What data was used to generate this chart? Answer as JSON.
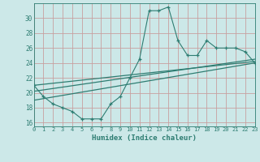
{
  "x": [
    0,
    1,
    2,
    3,
    4,
    5,
    6,
    7,
    8,
    9,
    10,
    11,
    12,
    13,
    14,
    15,
    16,
    17,
    18,
    19,
    20,
    21,
    22,
    23
  ],
  "y_main": [
    21,
    19.5,
    18.5,
    18,
    17.5,
    16.5,
    16.5,
    16.5,
    18.5,
    19.5,
    22,
    24.5,
    31,
    31,
    31.5,
    27,
    25,
    25,
    27,
    26,
    26,
    26,
    25.5,
    24
  ],
  "trend1_x": [
    0,
    23
  ],
  "trend1_y": [
    21.0,
    24.2
  ],
  "trend2_x": [
    0,
    23
  ],
  "trend2_y": [
    20.2,
    24.5
  ],
  "trend3_x": [
    0,
    23
  ],
  "trend3_y": [
    19.0,
    24.0
  ],
  "line_color": "#2e7d72",
  "bg_color": "#cce8e8",
  "grid_color": "#b0d8d8",
  "xlabel": "Humidex (Indice chaleur)",
  "xlim": [
    0,
    23
  ],
  "ylim": [
    15.5,
    32
  ],
  "xticks": [
    0,
    1,
    2,
    3,
    4,
    5,
    6,
    7,
    8,
    9,
    10,
    11,
    12,
    13,
    14,
    15,
    16,
    17,
    18,
    19,
    20,
    21,
    22,
    23
  ],
  "yticks": [
    16,
    18,
    20,
    22,
    24,
    26,
    28,
    30
  ]
}
